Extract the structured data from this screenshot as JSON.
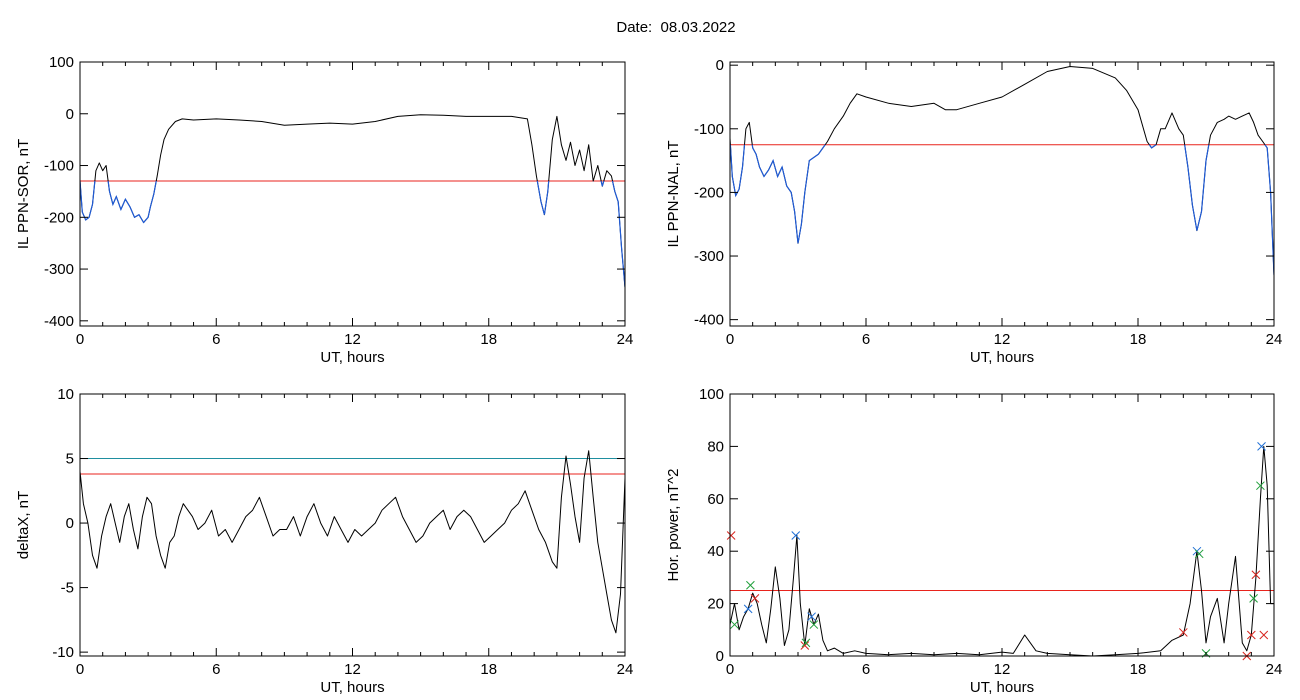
{
  "page_title": "Date:  08.03.2022",
  "chart_data": [
    {
      "id": "ppn-sor",
      "type": "line",
      "xlabel": "UT, hours",
      "ylabel": "IL PPN-SOR, nT",
      "xlim": [
        0,
        24
      ],
      "ylim": [
        -410,
        100
      ],
      "xticks": [
        "0",
        "6",
        "12",
        "18",
        "24"
      ],
      "yticks": [
        "100",
        "0",
        "-100",
        "-200",
        "-300",
        "-400"
      ],
      "threshold": -130,
      "colors": {
        "line": "#000000",
        "below_threshold": "#1f5bd6",
        "threshold": "#e8231c"
      },
      "series": [
        {
          "x": [
            0,
            0.1,
            0.25,
            0.4,
            0.55,
            0.7,
            0.85,
            1.0,
            1.15,
            1.3,
            1.45,
            1.6,
            1.8,
            2.0,
            2.2,
            2.4,
            2.6,
            2.8,
            3.0,
            3.1,
            3.25,
            3.4,
            3.55,
            3.7,
            3.9,
            4.2,
            4.5,
            5,
            6,
            7,
            8,
            9,
            10,
            11,
            12,
            13,
            14,
            15,
            16,
            17,
            18,
            19,
            19.7,
            19.9,
            20.1,
            20.3,
            20.45,
            20.6,
            20.8,
            21.0,
            21.2,
            21.4,
            21.6,
            21.8,
            22.0,
            22.2,
            22.4,
            22.6,
            22.8,
            23.0,
            23.2,
            23.4,
            23.55,
            23.7,
            23.85,
            24.0
          ],
          "values": [
            -130,
            -190,
            -205,
            -200,
            -175,
            -110,
            -95,
            -110,
            -100,
            -150,
            -175,
            -160,
            -185,
            -165,
            -180,
            -200,
            -195,
            -210,
            -200,
            -180,
            -155,
            -120,
            -80,
            -50,
            -30,
            -15,
            -10,
            -12,
            -10,
            -12,
            -15,
            -22,
            -20,
            -18,
            -20,
            -15,
            -5,
            -2,
            -3,
            -5,
            -5,
            -5,
            -10,
            -60,
            -120,
            -170,
            -195,
            -150,
            -50,
            -5,
            -60,
            -90,
            -55,
            -100,
            -70,
            -110,
            -60,
            -130,
            -100,
            -140,
            -110,
            -120,
            -150,
            -170,
            -260,
            -335
          ]
        }
      ]
    },
    {
      "id": "ppn-nal",
      "type": "line",
      "xlabel": "UT, hours",
      "ylabel": "IL PPN-NAL, nT",
      "xlim": [
        0,
        24
      ],
      "ylim": [
        -410,
        5
      ],
      "xticks": [
        "0",
        "6",
        "12",
        "18",
        "24"
      ],
      "yticks": [
        "0",
        "-100",
        "-200",
        "-300",
        "-400"
      ],
      "threshold": -125,
      "colors": {
        "line": "#000000",
        "below_threshold": "#1f5bd6",
        "threshold": "#e8231c"
      },
      "series": [
        {
          "x": [
            0,
            0.1,
            0.25,
            0.4,
            0.55,
            0.7,
            0.85,
            1.0,
            1.15,
            1.3,
            1.5,
            1.7,
            1.9,
            2.1,
            2.3,
            2.5,
            2.7,
            2.85,
            3.0,
            3.15,
            3.3,
            3.5,
            3.7,
            3.9,
            4.1,
            4.3,
            4.6,
            5.0,
            5.3,
            5.6,
            6,
            7,
            8,
            9,
            9.5,
            10,
            11,
            12,
            13,
            14,
            15,
            16,
            17,
            17.5,
            18,
            18.4,
            18.6,
            18.8,
            19.0,
            19.2,
            19.5,
            19.8,
            20.0,
            20.2,
            20.4,
            20.6,
            20.8,
            21.0,
            21.2,
            21.5,
            21.8,
            22.0,
            22.3,
            22.6,
            22.9,
            23.1,
            23.3,
            23.5,
            23.7,
            23.85,
            24.0
          ],
          "values": [
            -115,
            -175,
            -205,
            -195,
            -160,
            -100,
            -90,
            -130,
            -140,
            -160,
            -175,
            -165,
            -150,
            -175,
            -160,
            -190,
            -200,
            -230,
            -280,
            -250,
            -200,
            -150,
            -145,
            -140,
            -130,
            -120,
            -100,
            -80,
            -60,
            -45,
            -50,
            -60,
            -65,
            -60,
            -70,
            -70,
            -60,
            -50,
            -30,
            -10,
            -2,
            -5,
            -20,
            -40,
            -70,
            -120,
            -130,
            -125,
            -100,
            -100,
            -75,
            -100,
            -110,
            -160,
            -220,
            -260,
            -230,
            -150,
            -110,
            -90,
            -85,
            -80,
            -85,
            -80,
            -75,
            -90,
            -110,
            -120,
            -130,
            -200,
            -330
          ]
        }
      ]
    },
    {
      "id": "deltax",
      "type": "line",
      "xlabel": "UT, hours",
      "ylabel": "deltaX, nT",
      "xlim": [
        0,
        24
      ],
      "ylim": [
        -10.3,
        10
      ],
      "xticks": [
        "0",
        "6",
        "12",
        "18",
        "24"
      ],
      "yticks": [
        "10",
        "5",
        "0",
        "-5",
        "-10"
      ],
      "threshold": 3.8,
      "threshold2": 5.0,
      "colors": {
        "line": "#000000",
        "threshold": "#e8231c",
        "threshold2": "#1f8fa0"
      },
      "series": [
        {
          "x": [
            0,
            0.15,
            0.35,
            0.55,
            0.75,
            0.95,
            1.15,
            1.35,
            1.55,
            1.75,
            1.95,
            2.15,
            2.35,
            2.55,
            2.75,
            2.95,
            3.15,
            3.35,
            3.55,
            3.75,
            3.95,
            4.15,
            4.35,
            4.55,
            4.75,
            4.95,
            5.2,
            5.5,
            5.8,
            6.1,
            6.4,
            6.7,
            7.0,
            7.3,
            7.6,
            7.9,
            8.2,
            8.5,
            8.8,
            9.1,
            9.4,
            9.7,
            10.0,
            10.3,
            10.6,
            10.9,
            11.2,
            11.5,
            11.8,
            12.1,
            12.4,
            12.7,
            13.0,
            13.3,
            13.6,
            13.9,
            14.2,
            14.5,
            14.8,
            15.1,
            15.4,
            15.7,
            16.0,
            16.3,
            16.6,
            16.9,
            17.2,
            17.5,
            17.8,
            18.1,
            18.4,
            18.7,
            19.0,
            19.3,
            19.6,
            19.9,
            20.2,
            20.5,
            20.8,
            21.0,
            21.2,
            21.4,
            21.6,
            21.8,
            22.0,
            22.2,
            22.4,
            22.6,
            22.8,
            23.0,
            23.2,
            23.4,
            23.6,
            23.8,
            24.0
          ],
          "values": [
            4.0,
            1.5,
            0,
            -2.5,
            -3.5,
            -1.0,
            0.5,
            1.5,
            0,
            -1.5,
            0.5,
            1.5,
            -0.5,
            -2.0,
            0.5,
            2.0,
            1.5,
            -1.0,
            -2.5,
            -3.5,
            -1.5,
            -1.0,
            0.5,
            1.5,
            1.0,
            0.5,
            -0.5,
            0,
            1.0,
            -1.0,
            -0.5,
            -1.5,
            -0.5,
            0.5,
            1.0,
            2.0,
            0.5,
            -1.0,
            -0.5,
            -0.5,
            0.5,
            -1.0,
            0.5,
            1.5,
            0,
            -1.0,
            0.5,
            -0.5,
            -1.5,
            -0.5,
            -1.0,
            -0.5,
            0,
            1.0,
            1.5,
            2.0,
            0.5,
            -0.5,
            -1.5,
            -1.0,
            0,
            0.5,
            1.0,
            -0.5,
            0.5,
            1.0,
            0.5,
            -0.5,
            -1.5,
            -1.0,
            -0.5,
            0,
            1.0,
            1.5,
            2.5,
            1.0,
            -0.5,
            -1.5,
            -3.0,
            -3.5,
            2.0,
            5.2,
            3.0,
            0.5,
            -1.5,
            3.5,
            5.6,
            2.0,
            -1.5,
            -3.5,
            -5.5,
            -7.5,
            -8.5,
            -5.5,
            3.5
          ]
        }
      ]
    },
    {
      "id": "hor-power",
      "type": "line",
      "xlabel": "UT, hours",
      "ylabel": "Hor. power, nT^2",
      "xlim": [
        0,
        24
      ],
      "ylim": [
        0,
        100
      ],
      "xticks": [
        "0",
        "6",
        "12",
        "18",
        "24"
      ],
      "yticks": [
        "0",
        "20",
        "40",
        "60",
        "80",
        "100"
      ],
      "threshold": 25,
      "colors": {
        "line": "#000000",
        "threshold": "#e8231c",
        "marker_blue": "#1f6fd6",
        "marker_red": "#d6231c",
        "marker_green": "#1f9f3a"
      },
      "series": [
        {
          "x": [
            0,
            0.2,
            0.4,
            0.6,
            0.8,
            1.0,
            1.2,
            1.4,
            1.6,
            1.8,
            2.0,
            2.2,
            2.4,
            2.6,
            2.8,
            2.95,
            3.1,
            3.3,
            3.5,
            3.7,
            3.9,
            4.1,
            4.3,
            4.6,
            5.0,
            5.5,
            6,
            7,
            8,
            9,
            10,
            11,
            12,
            12.5,
            13,
            13.5,
            14,
            15,
            16,
            17,
            18,
            19,
            19.5,
            20,
            20.3,
            20.6,
            20.8,
            21.0,
            21.2,
            21.5,
            21.8,
            22.0,
            22.3,
            22.6,
            22.8,
            23.0,
            23.2,
            23.4,
            23.55,
            23.7,
            23.85,
            24.0
          ],
          "values": [
            12,
            20,
            10,
            15,
            18,
            24,
            20,
            12,
            5,
            18,
            34,
            22,
            4,
            10,
            30,
            46,
            20,
            4,
            18,
            12,
            16,
            6,
            2,
            3,
            1,
            2,
            1,
            0.5,
            1,
            0.5,
            1,
            0.5,
            1.5,
            1,
            8,
            2,
            1,
            0.5,
            0,
            0.5,
            1,
            2,
            6,
            8,
            20,
            40,
            25,
            5,
            15,
            22,
            5,
            20,
            38,
            5,
            2,
            8,
            30,
            60,
            80,
            65,
            20,
            20
          ]
        }
      ],
      "markers": [
        {
          "x": 0.05,
          "y": 46,
          "color": "red"
        },
        {
          "x": 0.2,
          "y": 12,
          "color": "green"
        },
        {
          "x": 0.8,
          "y": 18,
          "color": "blue"
        },
        {
          "x": 0.9,
          "y": 27,
          "color": "green"
        },
        {
          "x": 1.1,
          "y": 22,
          "color": "red"
        },
        {
          "x": 2.9,
          "y": 46,
          "color": "blue"
        },
        {
          "x": 3.3,
          "y": 4,
          "color": "red"
        },
        {
          "x": 3.35,
          "y": 5,
          "color": "green"
        },
        {
          "x": 3.6,
          "y": 15,
          "color": "blue"
        },
        {
          "x": 3.7,
          "y": 12,
          "color": "green"
        },
        {
          "x": 20.0,
          "y": 9,
          "color": "red"
        },
        {
          "x": 20.6,
          "y": 40,
          "color": "blue"
        },
        {
          "x": 20.7,
          "y": 39,
          "color": "green"
        },
        {
          "x": 21.0,
          "y": 1,
          "color": "green"
        },
        {
          "x": 22.8,
          "y": 0,
          "color": "red"
        },
        {
          "x": 23.0,
          "y": 8,
          "color": "red"
        },
        {
          "x": 23.1,
          "y": 22,
          "color": "green"
        },
        {
          "x": 23.2,
          "y": 31,
          "color": "red"
        },
        {
          "x": 23.4,
          "y": 65,
          "color": "green"
        },
        {
          "x": 23.45,
          "y": 80,
          "color": "blue"
        },
        {
          "x": 23.55,
          "y": 8,
          "color": "red"
        }
      ]
    }
  ]
}
